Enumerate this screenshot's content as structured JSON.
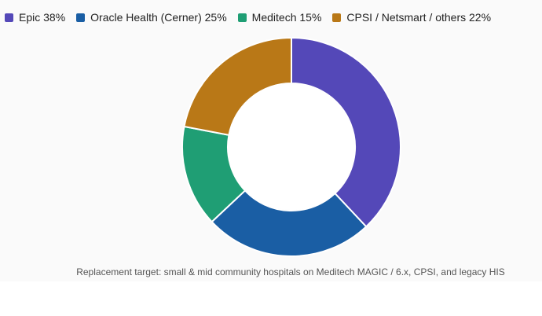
{
  "chart_data": {
    "type": "pie",
    "donut": true,
    "categories": [
      "Epic",
      "Oracle Health (Cerner)",
      "Meditech",
      "CPSI / Netsmart / others"
    ],
    "values": [
      38,
      25,
      15,
      22
    ],
    "legend_labels": [
      "Epic 38%",
      "Oracle Health (Cerner) 25%",
      "Meditech 15%",
      "CPSI / Netsmart / others 22%"
    ],
    "colors": [
      "#5448b8",
      "#1a5ea4",
      "#1f9e74",
      "#b97817"
    ],
    "legend_position": "top-left",
    "caption": "Replacement target: small & mid community hospitals on Meditech MAGIC / 6.x, CPSI, and legacy HIS"
  }
}
